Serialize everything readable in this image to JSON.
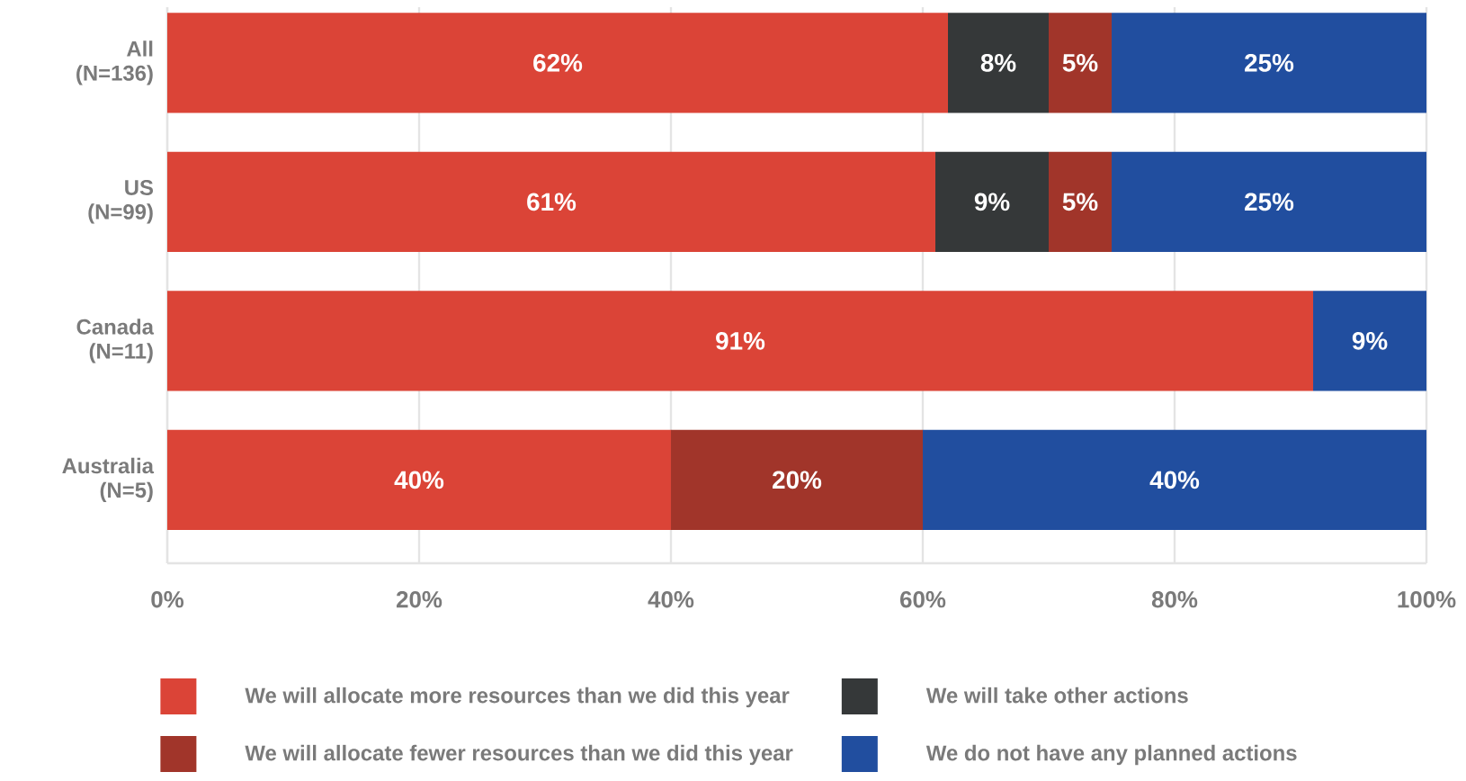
{
  "chart_data": {
    "type": "bar",
    "orientation": "horizontal",
    "stacked": true,
    "categories": [
      "All (N=136)",
      "US (N=99)",
      "Canada (N=11)",
      "Australia (N=5)"
    ],
    "series": [
      {
        "name": "We will allocate more resources than we did this year",
        "color": "#db4437",
        "values": [
          62,
          61,
          91,
          40
        ],
        "value_labels": [
          "62%",
          "61%",
          "91%",
          "40%"
        ]
      },
      {
        "name": "We will take other actions",
        "color": "#353839",
        "values": [
          8,
          9,
          null,
          null
        ],
        "value_labels": [
          "8%",
          "9%",
          null,
          null
        ]
      },
      {
        "name": "We will allocate fewer resources than we did this year",
        "color": "#a1352a",
        "values": [
          5,
          5,
          null,
          20
        ],
        "value_labels": [
          "5%",
          "5%",
          null,
          "20%"
        ]
      },
      {
        "name": "We do not have any planned actions",
        "color": "#214e9f",
        "values": [
          25,
          25,
          9,
          40
        ],
        "value_labels": [
          "25%",
          "25%",
          "9%",
          "40%"
        ]
      }
    ],
    "xlim": [
      0,
      100
    ],
    "xticks": [
      {
        "value": 0,
        "label": "0%"
      },
      {
        "value": 20,
        "label": "20%"
      },
      {
        "value": 40,
        "label": "40%"
      },
      {
        "value": 60,
        "label": "60%"
      },
      {
        "value": 80,
        "label": "80%"
      },
      {
        "value": 100,
        "label": "100%"
      }
    ],
    "grid": "x",
    "legend": "bottom"
  }
}
